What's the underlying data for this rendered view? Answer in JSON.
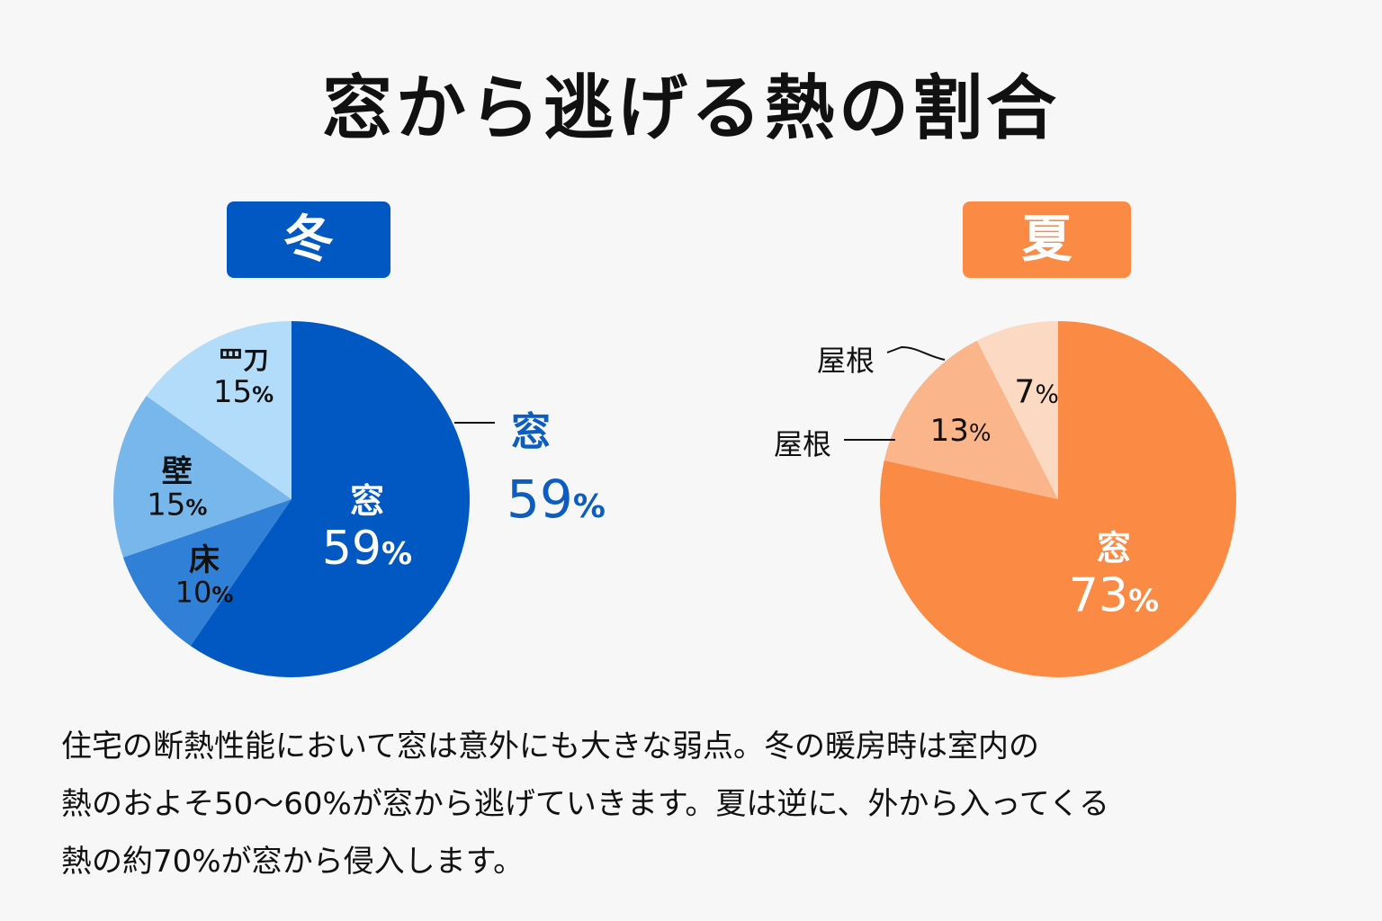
{
  "title": "窓から逃げる熱の割合",
  "chart_data": [
    {
      "type": "pie",
      "label": "冬",
      "color": "#0258c3",
      "slices": [
        {
          "name": "窓",
          "value": 59,
          "display": "59",
          "color": "#0258c3",
          "text_color": "#ffffff"
        },
        {
          "name": "床",
          "value": 10,
          "display": "10",
          "color": "#2f80d6",
          "text_color": "#111111"
        },
        {
          "name": "壁",
          "value": 15,
          "display": "15",
          "color": "#78b7ec",
          "text_color": "#111111"
        },
        {
          "name": "罒刀",
          "value": 15,
          "display": "15",
          "color": "#b3dcfb",
          "text_color": "#111111"
        }
      ],
      "callout": {
        "name": "窓",
        "value": "59",
        "unit": "%"
      }
    },
    {
      "type": "pie",
      "label": "夏",
      "color": "#fb8a45",
      "slices": [
        {
          "name": "窓",
          "value": 73,
          "display": "73",
          "color": "#fb8a45",
          "text_color": "#ffffff"
        },
        {
          "name": "屋根",
          "value": 13,
          "display": "13",
          "color": "#fbb58a",
          "text_color": "#111111"
        },
        {
          "name": "屋根",
          "value": 7,
          "display": "7",
          "color": "#fcd9c2",
          "text_color": "#111111"
        }
      ]
    }
  ],
  "unit": "%",
  "description": [
    "住宅の断熱性能において窓は意外にも大きな弱点。冬の暖房時は室内の",
    "熱のおよそ50〜60%が窓から逃げていきます。夏は逆に、外から入ってくる",
    "熱の約70%が窓から侵入します。"
  ]
}
